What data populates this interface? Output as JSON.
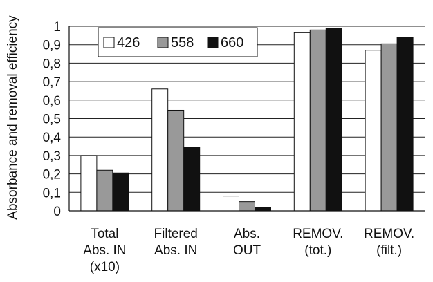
{
  "chart_data": {
    "type": "bar",
    "title": "",
    "xlabel": "",
    "ylabel": "Absorbance and removal efficiency",
    "ylim": [
      0,
      1
    ],
    "yticks": [
      "0",
      "0,1",
      "0,2",
      "0,3",
      "0,4",
      "0,5",
      "0,6",
      "0,7",
      "0,8",
      "0,9",
      "1"
    ],
    "ytick_values": [
      0,
      0.1,
      0.2,
      0.3,
      0.4,
      0.5,
      0.6,
      0.7,
      0.8,
      0.9,
      1.0
    ],
    "grid": "horizontal",
    "legend_position": "top-left",
    "categories": [
      [
        "Total",
        "Abs. IN",
        "(x10)"
      ],
      [
        "Filtered",
        "Abs. IN"
      ],
      [
        "Abs.",
        "OUT"
      ],
      [
        "REMOV.",
        "(tot.)"
      ],
      [
        "REMOV.",
        "(filt.)"
      ]
    ],
    "series": [
      {
        "name": "426",
        "color": "#ffffff",
        "values": [
          0.3,
          0.66,
          0.08,
          0.965,
          0.87
        ]
      },
      {
        "name": "558",
        "color": "#999999",
        "values": [
          0.22,
          0.545,
          0.05,
          0.98,
          0.905
        ]
      },
      {
        "name": "660",
        "color": "#111111",
        "values": [
          0.205,
          0.345,
          0.02,
          0.99,
          0.94
        ]
      }
    ]
  }
}
